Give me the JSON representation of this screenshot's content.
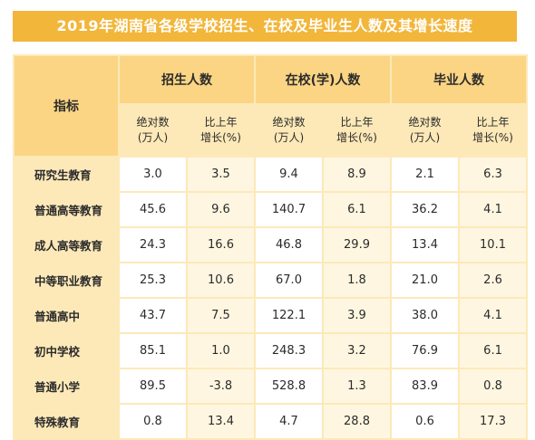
{
  "title": "2019年湖南省各级学校招生、在校及毕业生人数及其增长速度",
  "header": {
    "indicator": "指标",
    "groups": [
      "招生人数",
      "在校(学)人数",
      "毕业人数"
    ],
    "sub_abs": [
      "绝对数",
      "(万人)"
    ],
    "sub_growth": [
      "比上年",
      "增长(%)"
    ]
  },
  "rows": [
    {
      "name": "研究生教育",
      "values": [
        "3.0",
        "3.5",
        "9.4",
        "8.9",
        "2.1",
        "6.3"
      ]
    },
    {
      "name": "普通高等教育",
      "values": [
        "45.6",
        "9.6",
        "140.7",
        "6.1",
        "36.2",
        "4.1"
      ]
    },
    {
      "name": "成人高等教育",
      "values": [
        "24.3",
        "16.6",
        "46.8",
        "29.9",
        "13.4",
        "10.1"
      ]
    },
    {
      "name": "中等职业教育",
      "values": [
        "25.3",
        "10.6",
        "67.0",
        "1.8",
        "21.0",
        "2.6"
      ]
    },
    {
      "name": "普通高中",
      "values": [
        "43.7",
        "7.5",
        "122.1",
        "3.9",
        "38.0",
        "4.1"
      ]
    },
    {
      "name": "初中学校",
      "values": [
        "85.1",
        "1.0",
        "248.3",
        "3.2",
        "76.9",
        "6.1"
      ]
    },
    {
      "name": "普通小学",
      "values": [
        "89.5",
        "-3.8",
        "528.8",
        "1.3",
        "83.9",
        "0.8"
      ]
    },
    {
      "name": "特殊教育",
      "values": [
        "0.8",
        "13.4",
        "4.7",
        "28.8",
        "0.6",
        "17.3"
      ]
    }
  ],
  "colors": {
    "title_bg": "#f2b63b",
    "header_bg": "#fbd584",
    "label_bg": "#fde9b8",
    "cell_bg": "#ffffff"
  }
}
